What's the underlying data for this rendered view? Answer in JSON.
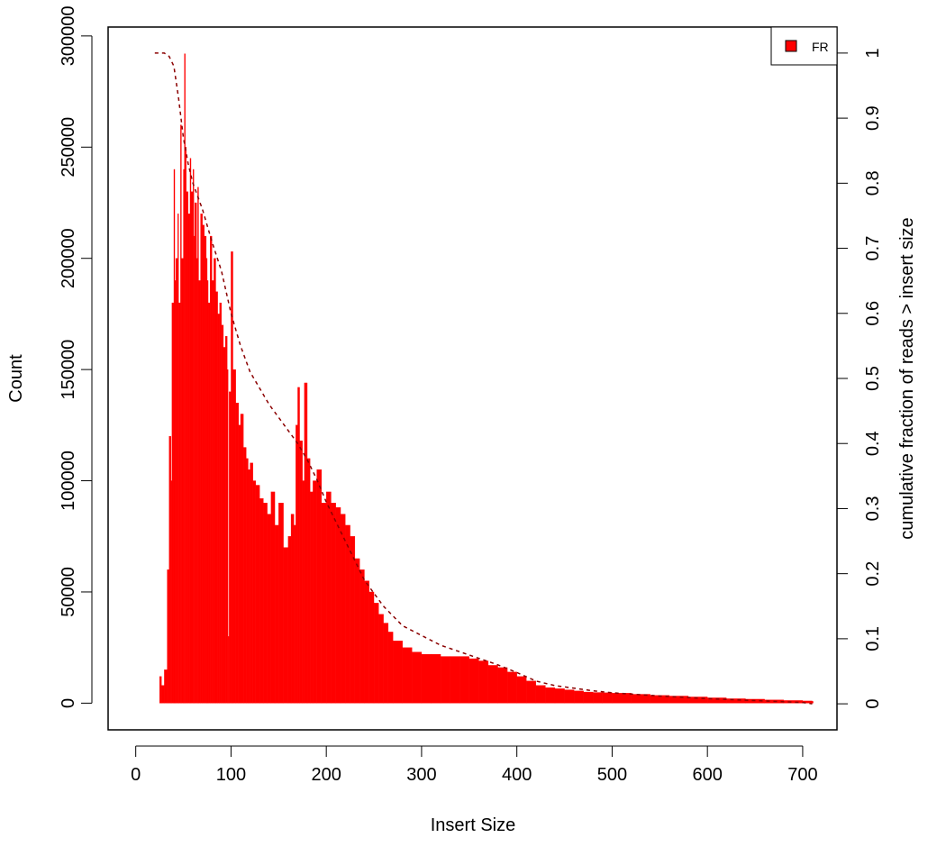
{
  "chart_data": {
    "type": "bar",
    "title": "",
    "xlabel": "Insert Size",
    "ylabel": "Count",
    "y2label": "cumulative fraction of reads > insert size",
    "xlim": [
      -29,
      736
    ],
    "ylim": [
      -12000,
      304000
    ],
    "y2lim": [
      -0.04,
      1.04
    ],
    "xticks": [
      0,
      100,
      200,
      300,
      400,
      500,
      600,
      700
    ],
    "yticks": [
      0,
      50000,
      100000,
      150000,
      200000,
      250000,
      300000
    ],
    "y2ticks": [
      0,
      0.1,
      0.2,
      0.3,
      0.4,
      0.5,
      0.6,
      0.7,
      0.8,
      0.9,
      1
    ],
    "xtick_labels": [
      "0",
      "100",
      "200",
      "300",
      "400",
      "500",
      "600",
      "700"
    ],
    "ytick_labels": [
      "0",
      "50000",
      "100000",
      "150000",
      "200000",
      "250000",
      "300000"
    ],
    "y2tick_labels": [
      "0",
      "0.1",
      "0.2",
      "0.3",
      "0.4",
      "0.5",
      "0.6",
      "0.7",
      "0.8",
      "0.9",
      "1"
    ],
    "legend": {
      "label": "FR",
      "color": "#ff0000",
      "position": "top-right"
    },
    "colors": {
      "bars": "#ff0000",
      "cumulative_line": "#8b0000"
    },
    "series": [
      {
        "name": "FR",
        "kind": "histogram",
        "x": [
          20,
          25,
          27,
          30,
          33,
          35,
          37,
          38,
          40,
          41,
          42,
          44,
          45,
          47,
          48,
          50,
          51,
          52,
          53,
          55,
          57,
          58,
          60,
          61,
          62,
          64,
          65,
          66,
          68,
          70,
          72,
          74,
          75,
          76,
          78,
          80,
          82,
          84,
          86,
          88,
          90,
          92,
          94,
          96,
          97,
          98,
          100,
          102,
          105,
          108,
          110,
          113,
          116,
          118,
          120,
          123,
          126,
          130,
          134,
          138,
          142,
          146,
          150,
          155,
          160,
          163,
          166,
          168,
          170,
          172,
          175,
          177,
          180,
          183,
          186,
          190,
          195,
          200,
          205,
          210,
          215,
          220,
          225,
          230,
          235,
          240,
          245,
          250,
          255,
          260,
          265,
          270,
          280,
          290,
          300,
          310,
          320,
          330,
          340,
          350,
          360,
          370,
          380,
          390,
          400,
          410,
          420,
          430,
          440,
          450,
          460,
          470,
          480,
          490,
          500,
          520,
          540,
          560,
          580,
          600,
          620,
          640,
          660,
          680,
          700,
          710
        ],
        "values": [
          0,
          12000,
          8000,
          15000,
          60000,
          120000,
          100000,
          180000,
          240000,
          190000,
          200000,
          220000,
          180000,
          260000,
          200000,
          240000,
          292000,
          250000,
          230000,
          220000,
          245000,
          230000,
          240000,
          210000,
          225000,
          200000,
          232000,
          190000,
          220000,
          215000,
          210000,
          200000,
          190000,
          180000,
          210000,
          190000,
          200000,
          185000,
          175000,
          180000,
          170000,
          160000,
          165000,
          150000,
          30000,
          140000,
          203000,
          150000,
          135000,
          125000,
          130000,
          115000,
          110000,
          105000,
          108000,
          100000,
          98000,
          92000,
          90000,
          85000,
          95000,
          80000,
          90000,
          70000,
          75000,
          85000,
          80000,
          125000,
          142000,
          118000,
          100000,
          144000,
          110000,
          95000,
          100000,
          105000,
          90000,
          95000,
          90000,
          88000,
          85000,
          80000,
          75000,
          65000,
          60000,
          55000,
          50000,
          45000,
          40000,
          36000,
          32000,
          28000,
          25000,
          23000,
          22000,
          22000,
          21000,
          21000,
          21000,
          20000,
          19000,
          17000,
          16000,
          14000,
          12000,
          10000,
          8000,
          7000,
          6500,
          6000,
          5500,
          5000,
          4800,
          4700,
          4500,
          4000,
          3500,
          3200,
          2800,
          2400,
          2000,
          1800,
          1500,
          1200,
          1000,
          800
        ]
      },
      {
        "name": "",
        "kind": "cumulative",
        "axis": "right",
        "x": [
          20,
          30,
          35,
          40,
          45,
          50,
          55,
          60,
          70,
          80,
          90,
          100,
          110,
          120,
          130,
          140,
          150,
          160,
          170,
          180,
          190,
          200,
          220,
          240,
          260,
          280,
          300,
          320,
          340,
          360,
          380,
          400,
          420,
          440,
          460,
          480,
          500,
          550,
          600,
          650,
          700,
          710
        ],
        "values": [
          1.0,
          1.0,
          0.995,
          0.98,
          0.93,
          0.87,
          0.83,
          0.8,
          0.76,
          0.71,
          0.665,
          0.6,
          0.55,
          0.51,
          0.485,
          0.46,
          0.44,
          0.42,
          0.4,
          0.375,
          0.345,
          0.31,
          0.25,
          0.19,
          0.15,
          0.12,
          0.105,
          0.09,
          0.08,
          0.07,
          0.06,
          0.048,
          0.035,
          0.028,
          0.024,
          0.02,
          0.017,
          0.012,
          0.008,
          0.005,
          0.002,
          0.0
        ]
      }
    ]
  }
}
